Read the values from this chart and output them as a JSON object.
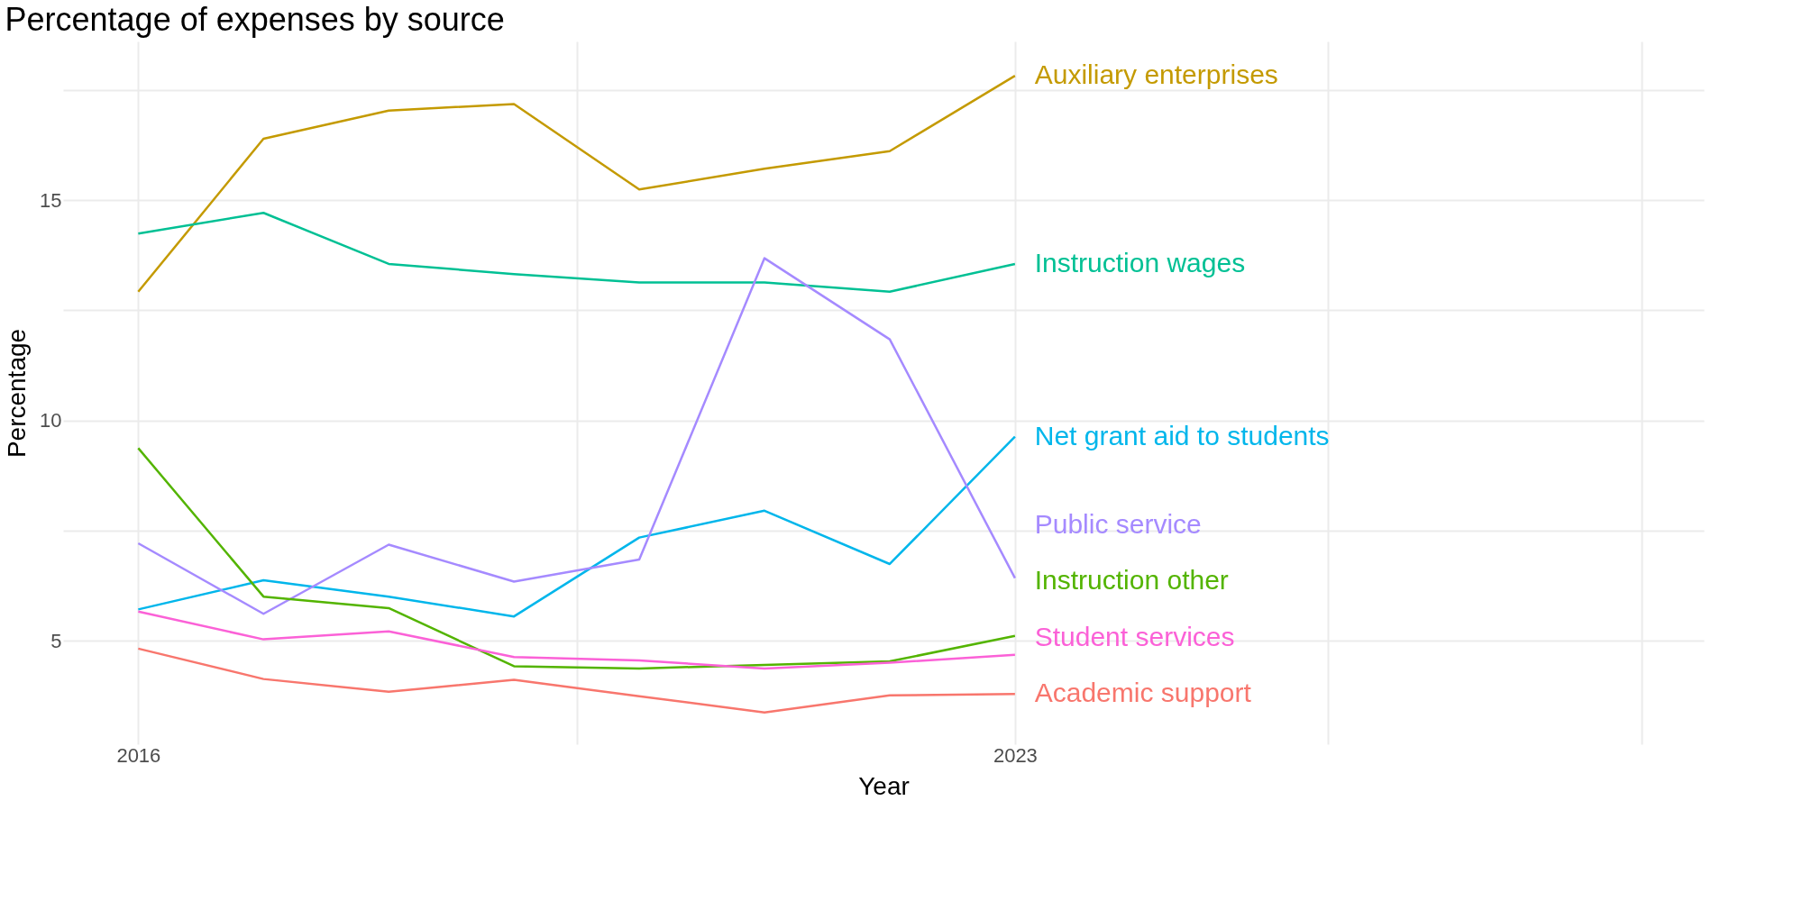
{
  "chart_data": {
    "type": "line",
    "title": "Percentage of expenses by source",
    "xlabel": "Year",
    "ylabel": "Percentage",
    "x": [
      2016,
      2017,
      2018,
      2019,
      2020,
      2021,
      2022,
      2023
    ],
    "xlim": [
      2015.4,
      2028.5
    ],
    "xticks": [
      2016,
      {
        "value": 2019.5,
        "label": null
      },
      2023,
      {
        "value": 2025.5,
        "label": null
      },
      {
        "value": 2028,
        "label": null
      }
    ],
    "ylim": [
      2.65,
      18.6
    ],
    "yticks": [
      5,
      {
        "value": 7.5,
        "label": null
      },
      10,
      {
        "value": 12.5,
        "label": null
      },
      15,
      {
        "value": 17.5,
        "label": null
      }
    ],
    "grid": true,
    "legend": false,
    "marker": "none",
    "line_style": "solid",
    "series": [
      {
        "name": "Auxiliary enterprises",
        "color": "#c49a00",
        "values": [
          12.92,
          16.39,
          17.03,
          17.18,
          15.24,
          15.71,
          16.11,
          17.82
        ]
      },
      {
        "name": "Instruction wages",
        "color": "#00c094",
        "values": [
          14.24,
          14.71,
          13.55,
          13.32,
          13.13,
          13.13,
          12.92,
          13.55
        ]
      },
      {
        "name": "Net grant aid to students",
        "color": "#00b6eb",
        "values": [
          5.71,
          6.37,
          6.0,
          5.55,
          7.34,
          7.95,
          6.74,
          9.63
        ]
      },
      {
        "name": "Public service",
        "color": "#a58aff",
        "values": [
          7.21,
          5.61,
          7.18,
          6.34,
          6.84,
          13.68,
          11.84,
          6.42
        ]
      },
      {
        "name": "Instruction other",
        "color": "#53b400",
        "values": [
          9.37,
          6.0,
          5.74,
          4.42,
          4.37,
          4.45,
          4.53,
          5.11
        ]
      },
      {
        "name": "Student services",
        "color": "#fb61d7",
        "values": [
          5.66,
          5.03,
          5.21,
          4.63,
          4.55,
          4.37,
          4.5,
          4.68
        ]
      },
      {
        "name": "Academic support",
        "color": "#f8766d",
        "values": [
          4.82,
          4.13,
          3.84,
          4.11,
          3.74,
          3.37,
          3.76,
          3.79
        ]
      }
    ]
  }
}
